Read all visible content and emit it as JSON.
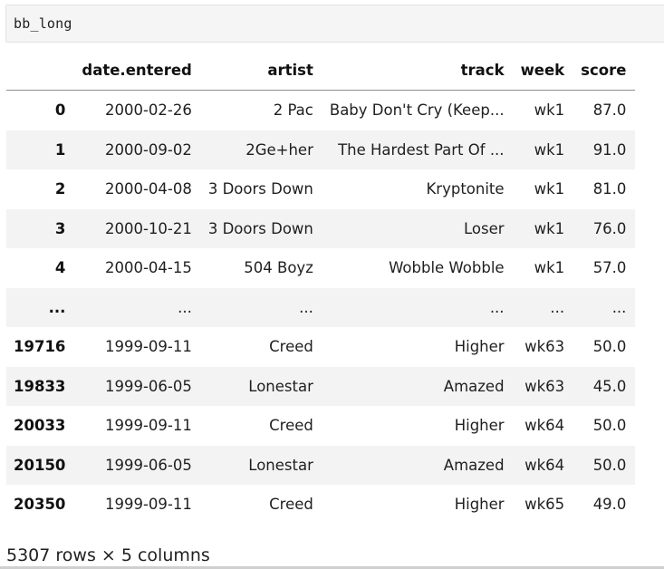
{
  "code_cell": {
    "source": "bb_long"
  },
  "table": {
    "columns": [
      "date.entered",
      "artist",
      "track",
      "week",
      "score"
    ],
    "rows": [
      {
        "index": "0",
        "cells": [
          "2000-02-26",
          "2 Pac",
          "Baby Don't Cry (Keep...",
          "wk1",
          "87.0"
        ]
      },
      {
        "index": "1",
        "cells": [
          "2000-09-02",
          "2Ge+her",
          "The Hardest Part Of ...",
          "wk1",
          "91.0"
        ]
      },
      {
        "index": "2",
        "cells": [
          "2000-04-08",
          "3 Doors Down",
          "Kryptonite",
          "wk1",
          "81.0"
        ]
      },
      {
        "index": "3",
        "cells": [
          "2000-10-21",
          "3 Doors Down",
          "Loser",
          "wk1",
          "76.0"
        ]
      },
      {
        "index": "4",
        "cells": [
          "2000-04-15",
          "504 Boyz",
          "Wobble Wobble",
          "wk1",
          "57.0"
        ]
      },
      {
        "index": "...",
        "cells": [
          "...",
          "...",
          "...",
          "...",
          "..."
        ]
      },
      {
        "index": "19716",
        "cells": [
          "1999-09-11",
          "Creed",
          "Higher",
          "wk63",
          "50.0"
        ]
      },
      {
        "index": "19833",
        "cells": [
          "1999-06-05",
          "Lonestar",
          "Amazed",
          "wk63",
          "45.0"
        ]
      },
      {
        "index": "20033",
        "cells": [
          "1999-09-11",
          "Creed",
          "Higher",
          "wk64",
          "50.0"
        ]
      },
      {
        "index": "20150",
        "cells": [
          "1999-06-05",
          "Lonestar",
          "Amazed",
          "wk64",
          "50.0"
        ]
      },
      {
        "index": "20350",
        "cells": [
          "1999-09-11",
          "Creed",
          "Higher",
          "wk65",
          "49.0"
        ]
      }
    ]
  },
  "footer": {
    "shape_text": "5307 rows × 5 columns"
  }
}
